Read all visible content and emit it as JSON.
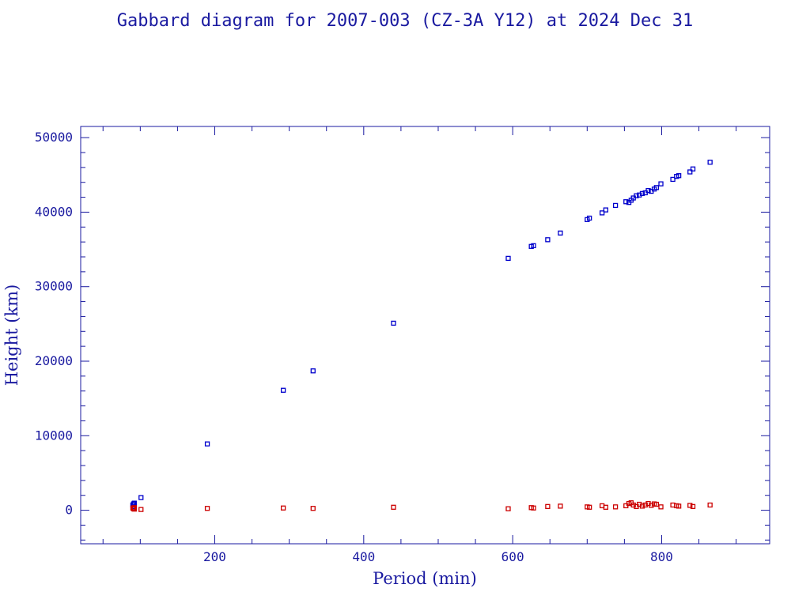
{
  "chart_data": {
    "type": "scatter",
    "title": "Gabbard diagram for 2007-003 (CZ-3A Y12) at 2024 Dec 31",
    "xlabel": "Period (min)",
    "ylabel": "Height (km)",
    "xlim": [
      20,
      945
    ],
    "ylim": [
      -4500,
      51500
    ],
    "x_ticks": [
      200,
      400,
      600,
      800
    ],
    "y_ticks": [
      0,
      10000,
      20000,
      30000,
      40000,
      50000
    ],
    "grid": false,
    "legend": "none",
    "colors": {
      "apogee": "#0000cc",
      "perigee": "#cc0000",
      "axes": "#1a1aa0"
    },
    "series": [
      {
        "key": "apogee",
        "points": [
          [
            90,
            700
          ],
          [
            91,
            850
          ],
          [
            92,
            950
          ],
          [
            92,
            500
          ],
          [
            101,
            1700
          ],
          [
            190,
            8900
          ],
          [
            292,
            16100
          ],
          [
            332,
            18700
          ],
          [
            440,
            25100
          ],
          [
            594,
            33800
          ],
          [
            625,
            35400
          ],
          [
            628,
            35500
          ],
          [
            647,
            36300
          ],
          [
            664,
            37200
          ],
          [
            700,
            39000
          ],
          [
            703,
            39200
          ],
          [
            720,
            39900
          ],
          [
            725,
            40300
          ],
          [
            738,
            40900
          ],
          [
            752,
            41400
          ],
          [
            756,
            41300
          ],
          [
            759,
            41600
          ],
          [
            762,
            41900
          ],
          [
            766,
            42200
          ],
          [
            770,
            42300
          ],
          [
            774,
            42500
          ],
          [
            778,
            42600
          ],
          [
            782,
            42900
          ],
          [
            786,
            42800
          ],
          [
            790,
            43100
          ],
          [
            793,
            43300
          ],
          [
            799,
            43800
          ],
          [
            815,
            44400
          ],
          [
            820,
            44800
          ],
          [
            823,
            44900
          ],
          [
            838,
            45400
          ],
          [
            842,
            45800
          ],
          [
            865,
            46700
          ]
        ]
      },
      {
        "key": "perigee",
        "points": [
          [
            90,
            300
          ],
          [
            91,
            200
          ],
          [
            92,
            350
          ],
          [
            92,
            150
          ],
          [
            101,
            100
          ],
          [
            190,
            250
          ],
          [
            292,
            300
          ],
          [
            332,
            250
          ],
          [
            440,
            400
          ],
          [
            594,
            200
          ],
          [
            625,
            350
          ],
          [
            628,
            300
          ],
          [
            647,
            500
          ],
          [
            664,
            550
          ],
          [
            700,
            450
          ],
          [
            703,
            400
          ],
          [
            720,
            600
          ],
          [
            725,
            400
          ],
          [
            738,
            450
          ],
          [
            752,
            600
          ],
          [
            756,
            900
          ],
          [
            759,
            1000
          ],
          [
            762,
            700
          ],
          [
            766,
            500
          ],
          [
            770,
            800
          ],
          [
            774,
            550
          ],
          [
            778,
            700
          ],
          [
            782,
            900
          ],
          [
            786,
            650
          ],
          [
            790,
            850
          ],
          [
            793,
            800
          ],
          [
            799,
            450
          ],
          [
            815,
            700
          ],
          [
            820,
            600
          ],
          [
            823,
            550
          ],
          [
            838,
            650
          ],
          [
            842,
            500
          ],
          [
            865,
            700
          ]
        ]
      }
    ]
  }
}
